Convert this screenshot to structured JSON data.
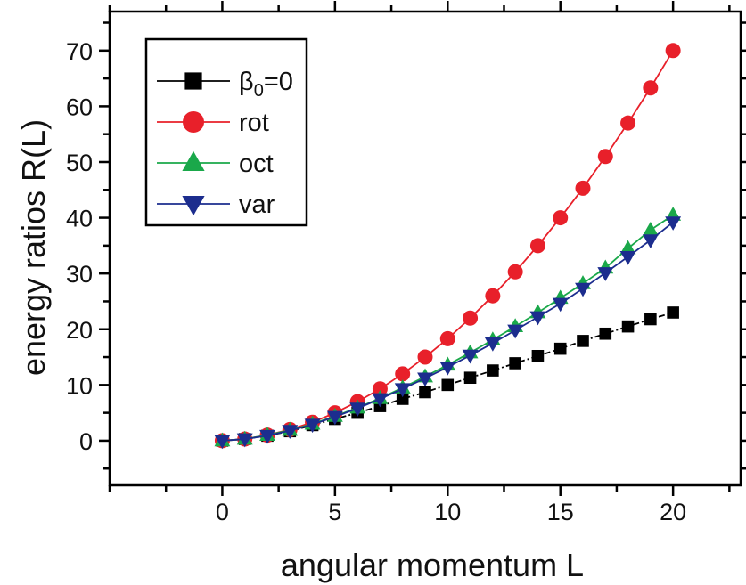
{
  "chart_data": {
    "type": "line",
    "xlabel": "angular momentum L",
    "ylabel": "energy ratios R(L)",
    "xlim": [
      -5,
      23
    ],
    "ylim": [
      -8,
      77
    ],
    "xticks": [
      0,
      5,
      10,
      15,
      20
    ],
    "yticks": [
      0,
      10,
      20,
      30,
      40,
      50,
      60,
      70
    ],
    "x": [
      0,
      1,
      2,
      3,
      4,
      5,
      6,
      7,
      8,
      9,
      10,
      11,
      12,
      13,
      14,
      15,
      16,
      17,
      18,
      19,
      20
    ],
    "legend_position": "top-left",
    "series": [
      {
        "name": "β0=0",
        "legend_base": "β",
        "legend_sub": "0",
        "legend_suffix": "=0",
        "color": "#000000",
        "marker": "square",
        "line_style": "dash-dot",
        "values": [
          0,
          0.3,
          0.9,
          1.7,
          2.8,
          3.9,
          5.0,
          6.2,
          7.5,
          8.7,
          10.0,
          11.3,
          12.6,
          13.9,
          15.2,
          16.5,
          17.9,
          19.2,
          20.5,
          21.8,
          23.0
        ]
      },
      {
        "name": "rot",
        "color": "#e8202a",
        "marker": "circle",
        "line_style": "solid",
        "values": [
          0,
          0.3,
          1.0,
          2.0,
          3.3,
          5.0,
          7.0,
          9.3,
          12.0,
          15.0,
          18.3,
          22.0,
          26.0,
          30.3,
          35.0,
          40.0,
          45.3,
          51.0,
          57.0,
          63.3,
          70.0
        ]
      },
      {
        "name": "oct",
        "color": "#1aa84a",
        "marker": "triangle-up",
        "line_style": "solid",
        "values": [
          0,
          0.3,
          1.0,
          1.9,
          3.0,
          4.4,
          5.9,
          7.6,
          9.5,
          11.5,
          13.6,
          15.8,
          18.1,
          20.5,
          23.0,
          25.6,
          28.2,
          31.0,
          34.5,
          37.8,
          40.5
        ]
      },
      {
        "name": "var",
        "color": "#1c2d8e",
        "marker": "triangle-down",
        "line_style": "solid",
        "values": [
          0,
          0.3,
          0.9,
          1.8,
          2.9,
          4.3,
          5.8,
          7.5,
          9.3,
          11.2,
          13.2,
          15.3,
          17.5,
          19.8,
          22.2,
          24.6,
          27.3,
          30.1,
          33.0,
          36.0,
          39.2
        ]
      }
    ]
  }
}
